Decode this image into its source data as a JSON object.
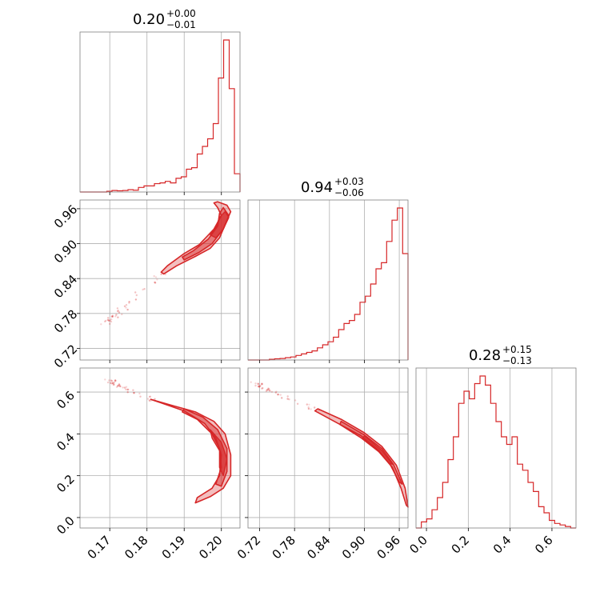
{
  "chart_data": {
    "type": "corner",
    "color": "#d62728",
    "parameters": [
      {
        "range": [
          0.162,
          0.205
        ],
        "ticks": [
          0.17,
          0.18,
          0.19,
          0.2
        ],
        "tick_labels": [
          "0.17",
          "0.18",
          "0.19",
          "0.20"
        ],
        "title": {
          "value": "0.20",
          "plus": "+0.00",
          "minus": "−0.01"
        }
      },
      {
        "range": [
          0.7,
          0.975
        ],
        "ticks": [
          0.72,
          0.78,
          0.84,
          0.9,
          0.96
        ],
        "tick_labels": [
          "0.72",
          "0.78",
          "0.84",
          "0.90",
          "0.96"
        ],
        "title": {
          "value": "0.94",
          "plus": "+0.03",
          "minus": "−0.06"
        }
      },
      {
        "range": [
          -0.05,
          0.715
        ],
        "ticks": [
          0.0,
          0.2,
          0.4,
          0.6
        ],
        "tick_labels": [
          "0.0",
          "0.2",
          "0.4",
          "0.6"
        ],
        "title": {
          "value": "0.28",
          "plus": "+0.15",
          "minus": "−0.13"
        }
      }
    ],
    "histograms": [
      {
        "bins": [
          0.162,
          0.1634,
          0.1649,
          0.1663,
          0.1677,
          0.1692,
          0.1706,
          0.172,
          0.1735,
          0.1749,
          0.1763,
          0.1777,
          0.1792,
          0.1806,
          0.182,
          0.1835,
          0.1849,
          0.1863,
          0.1878,
          0.1892,
          0.1906,
          0.192,
          0.1935,
          0.1949,
          0.1963,
          0.1978,
          0.1992,
          0.2006,
          0.2021,
          0.2035,
          0.205
        ],
        "counts": [
          0,
          0,
          0,
          0,
          0,
          0.005,
          0.01,
          0.008,
          0.01,
          0.015,
          0.012,
          0.03,
          0.04,
          0.04,
          0.055,
          0.06,
          0.07,
          0.06,
          0.09,
          0.1,
          0.15,
          0.16,
          0.25,
          0.3,
          0.35,
          0.45,
          0.75,
          1.0,
          0.68,
          0.12
        ]
      },
      {
        "bins": [
          0.7,
          0.7092,
          0.7183,
          0.7275,
          0.7367,
          0.7458,
          0.755,
          0.7642,
          0.7733,
          0.7825,
          0.7917,
          0.8008,
          0.81,
          0.8192,
          0.8283,
          0.8375,
          0.8467,
          0.8558,
          0.865,
          0.8742,
          0.8833,
          0.8925,
          0.9017,
          0.9108,
          0.92,
          0.9292,
          0.9383,
          0.9475,
          0.9567,
          0.9658,
          0.975
        ],
        "counts": [
          0,
          0,
          0,
          0,
          0.005,
          0.008,
          0.01,
          0.015,
          0.02,
          0.03,
          0.04,
          0.05,
          0.06,
          0.08,
          0.1,
          0.12,
          0.15,
          0.2,
          0.24,
          0.26,
          0.3,
          0.38,
          0.42,
          0.5,
          0.6,
          0.64,
          0.78,
          0.92,
          1.0,
          0.7
        ]
      },
      {
        "bins": [
          -0.05,
          -0.0245,
          0.001,
          0.0265,
          0.052,
          0.0775,
          0.103,
          0.1285,
          0.154,
          0.1795,
          0.205,
          0.2305,
          0.256,
          0.2815,
          0.307,
          0.3325,
          0.358,
          0.3835,
          0.409,
          0.4345,
          0.46,
          0.4855,
          0.511,
          0.5365,
          0.562,
          0.5875,
          0.613,
          0.6385,
          0.664,
          0.6895,
          0.715
        ],
        "counts": [
          0,
          0.04,
          0.06,
          0.12,
          0.2,
          0.3,
          0.45,
          0.6,
          0.82,
          0.9,
          0.85,
          0.95,
          1.0,
          0.94,
          0.82,
          0.7,
          0.6,
          0.55,
          0.6,
          0.42,
          0.38,
          0.3,
          0.24,
          0.14,
          0.1,
          0.05,
          0.03,
          0.02,
          0.01,
          0
        ]
      }
    ],
    "contours": {
      "p1_vs_p0": [
        {
          "level": "outer",
          "points": [
            [
              0.1845,
              0.848
            ],
            [
              0.188,
              0.862
            ],
            [
              0.193,
              0.878
            ],
            [
              0.197,
              0.892
            ],
            [
              0.1995,
              0.91
            ],
            [
              0.2015,
              0.94
            ],
            [
              0.2025,
              0.955
            ],
            [
              0.2015,
              0.966
            ],
            [
              0.199,
              0.972
            ],
            [
              0.198,
              0.97
            ],
            [
              0.199,
              0.962
            ],
            [
              0.2,
              0.948
            ],
            [
              0.198,
              0.925
            ],
            [
              0.194,
              0.898
            ],
            [
              0.19,
              0.883
            ],
            [
              0.1855,
              0.862
            ],
            [
              0.1838,
              0.851
            ]
          ]
        },
        {
          "level": "mid",
          "points": [
            [
              0.19,
              0.872
            ],
            [
              0.194,
              0.885
            ],
            [
              0.1975,
              0.9
            ],
            [
              0.2005,
              0.925
            ],
            [
              0.202,
              0.948
            ],
            [
              0.2005,
              0.962
            ],
            [
              0.1995,
              0.952
            ],
            [
              0.199,
              0.93
            ],
            [
              0.1965,
              0.908
            ],
            [
              0.1925,
              0.888
            ],
            [
              0.1895,
              0.877
            ]
          ]
        },
        {
          "level": "inner",
          "points": [
            [
              0.1985,
              0.91
            ],
            [
              0.2005,
              0.925
            ],
            [
              0.202,
              0.945
            ],
            [
              0.201,
              0.955
            ],
            [
              0.1995,
              0.945
            ],
            [
              0.1985,
              0.928
            ],
            [
              0.197,
              0.915
            ]
          ]
        }
      ],
      "p2_vs_p0": [
        {
          "level": "outer",
          "points": [
            [
              0.181,
              0.565
            ],
            [
              0.187,
              0.535
            ],
            [
              0.193,
              0.505
            ],
            [
              0.198,
              0.46
            ],
            [
              0.201,
              0.4
            ],
            [
              0.2025,
              0.3
            ],
            [
              0.2025,
              0.2
            ],
            [
              0.2005,
              0.14
            ],
            [
              0.197,
              0.1
            ],
            [
              0.193,
              0.07
            ],
            [
              0.1935,
              0.095
            ],
            [
              0.1975,
              0.14
            ],
            [
              0.1995,
              0.2
            ],
            [
              0.2,
              0.3
            ],
            [
              0.1985,
              0.38
            ],
            [
              0.1955,
              0.45
            ],
            [
              0.19,
              0.51
            ],
            [
              0.1835,
              0.55
            ]
          ]
        },
        {
          "level": "mid",
          "points": [
            [
              0.19,
              0.52
            ],
            [
              0.195,
              0.48
            ],
            [
              0.199,
              0.42
            ],
            [
              0.2015,
              0.33
            ],
            [
              0.2015,
              0.22
            ],
            [
              0.2,
              0.15
            ],
            [
              0.1985,
              0.16
            ],
            [
              0.2,
              0.24
            ],
            [
              0.1995,
              0.33
            ],
            [
              0.1975,
              0.4
            ],
            [
              0.1935,
              0.47
            ],
            [
              0.1895,
              0.505
            ]
          ]
        },
        {
          "level": "inner",
          "points": [
            [
              0.197,
              0.42
            ],
            [
              0.2,
              0.36
            ],
            [
              0.2015,
              0.28
            ],
            [
              0.2005,
              0.2
            ],
            [
              0.1995,
              0.24
            ],
            [
              0.1995,
              0.32
            ],
            [
              0.1975,
              0.38
            ]
          ]
        }
      ],
      "p2_vs_p1": [
        {
          "level": "outer",
          "points": [
            [
              0.82,
              0.52
            ],
            [
              0.86,
              0.47
            ],
            [
              0.9,
              0.405
            ],
            [
              0.93,
              0.34
            ],
            [
              0.955,
              0.25
            ],
            [
              0.97,
              0.14
            ],
            [
              0.975,
              0.05
            ],
            [
              0.972,
              0.06
            ],
            [
              0.963,
              0.14
            ],
            [
              0.948,
              0.24
            ],
            [
              0.925,
              0.32
            ],
            [
              0.895,
              0.39
            ],
            [
              0.855,
              0.45
            ],
            [
              0.815,
              0.51
            ]
          ]
        },
        {
          "level": "mid",
          "points": [
            [
              0.86,
              0.46
            ],
            [
              0.9,
              0.395
            ],
            [
              0.93,
              0.33
            ],
            [
              0.95,
              0.255
            ],
            [
              0.965,
              0.16
            ],
            [
              0.96,
              0.17
            ],
            [
              0.945,
              0.25
            ],
            [
              0.925,
              0.315
            ],
            [
              0.895,
              0.38
            ],
            [
              0.858,
              0.445
            ]
          ]
        },
        {
          "level": "inner",
          "points": [
            [
              0.9,
              0.39
            ],
            [
              0.93,
              0.32
            ],
            [
              0.948,
              0.255
            ],
            [
              0.943,
              0.26
            ],
            [
              0.925,
              0.315
            ],
            [
              0.897,
              0.382
            ]
          ]
        }
      ]
    }
  }
}
